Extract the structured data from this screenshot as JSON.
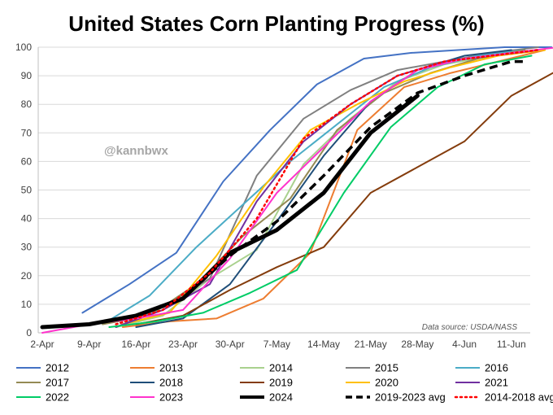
{
  "chart_data": {
    "type": "line",
    "title": "United States Corn Planting Progress (%)",
    "watermark": "@kannbwx",
    "source_note": "Data source: USDA/NASS",
    "ylim": [
      0,
      100
    ],
    "yticks": [
      0,
      10,
      20,
      30,
      40,
      50,
      60,
      70,
      80,
      90,
      100
    ],
    "x_day_range": [
      0,
      71
    ],
    "xticks": [
      {
        "label": "2-Apr",
        "day": 0
      },
      {
        "label": "9-Apr",
        "day": 7
      },
      {
        "label": "16-Apr",
        "day": 14
      },
      {
        "label": "23-Apr",
        "day": 21
      },
      {
        "label": "30-Apr",
        "day": 28
      },
      {
        "label": "7-May",
        "day": 35
      },
      {
        "label": "14-May",
        "day": 42
      },
      {
        "label": "21-May",
        "day": 49
      },
      {
        "label": "28-May",
        "day": 56
      },
      {
        "label": "4-Jun",
        "day": 63
      },
      {
        "label": "11-Jun",
        "day": 70
      }
    ],
    "series": [
      {
        "name": "2012",
        "color": "#4472C4",
        "width": 2,
        "dash": "",
        "x": [
          6,
          13,
          20,
          27,
          34,
          41,
          48,
          55,
          62,
          69,
          76
        ],
        "y": [
          7,
          17,
          28,
          53,
          71,
          87,
          96,
          98,
          99,
          100,
          100
        ]
      },
      {
        "name": "2013",
        "color": "#ED7D31",
        "width": 2,
        "dash": "",
        "x": [
          12,
          19,
          26,
          33,
          40,
          47,
          54,
          61,
          68,
          75
        ],
        "y": [
          2,
          4,
          5,
          12,
          28,
          71,
          86,
          91,
          95,
          99
        ]
      },
      {
        "name": "2014",
        "color": "#A9D18E",
        "width": 2,
        "dash": "",
        "x": [
          11,
          18,
          25,
          32,
          39,
          46,
          53,
          60,
          67,
          74
        ],
        "y": [
          2,
          6,
          19,
          29,
          59,
          75,
          88,
          94,
          97,
          99
        ]
      },
      {
        "name": "2015",
        "color": "#808080",
        "width": 2,
        "dash": "",
        "x": [
          11,
          18,
          25,
          32,
          39,
          46,
          53,
          60,
          67,
          74
        ],
        "y": [
          2,
          9,
          19,
          55,
          75,
          85,
          92,
          95,
          98,
          100
        ]
      },
      {
        "name": "2016",
        "color": "#4BACC6",
        "width": 2,
        "dash": "",
        "x": [
          9,
          16,
          23,
          30,
          37,
          44,
          51,
          58,
          65,
          72
        ],
        "y": [
          3,
          13,
          30,
          45,
          60,
          73,
          86,
          93,
          97,
          99
        ]
      },
      {
        "name": "2017",
        "color": "#948A54",
        "width": 2,
        "dash": "",
        "x": [
          9,
          16,
          23,
          30,
          37,
          44,
          51,
          58,
          65,
          72
        ],
        "y": [
          3,
          6,
          17,
          34,
          47,
          71,
          84,
          91,
          96,
          99
        ]
      },
      {
        "name": "2018",
        "color": "#1F4E79",
        "width": 2,
        "dash": "",
        "x": [
          14,
          21,
          28,
          35,
          42,
          49,
          56,
          63,
          70
        ],
        "y": [
          2,
          5,
          17,
          39,
          62,
          81,
          92,
          97,
          99
        ]
      },
      {
        "name": "2019",
        "color": "#843C0C",
        "width": 2,
        "dash": "",
        "x": [
          14,
          21,
          28,
          35,
          42,
          49,
          56,
          63,
          70,
          77
        ],
        "y": [
          3,
          6,
          15,
          23,
          30,
          49,
          58,
          67,
          83,
          92
        ]
      },
      {
        "name": "2020",
        "color": "#FFC000",
        "width": 2,
        "dash": "",
        "x": [
          12,
          19,
          26,
          33,
          40,
          47,
          54,
          61,
          68,
          75
        ],
        "y": [
          3,
          7,
          27,
          51,
          71,
          80,
          88,
          93,
          97,
          99
        ]
      },
      {
        "name": "2021",
        "color": "#7030A0",
        "width": 2,
        "dash": "",
        "x": [
          11,
          18,
          25,
          32,
          39,
          46,
          53,
          60,
          67,
          74
        ],
        "y": [
          2,
          8,
          17,
          46,
          67,
          80,
          90,
          95,
          97,
          99
        ]
      },
      {
        "name": "2022",
        "color": "#00CC66",
        "width": 2,
        "dash": "",
        "x": [
          10,
          17,
          24,
          31,
          38,
          45,
          52,
          59,
          66,
          73
        ],
        "y": [
          2,
          4,
          7,
          14,
          22,
          49,
          72,
          86,
          94,
          97
        ]
      },
      {
        "name": "2023",
        "color": "#FF33CC",
        "width": 2,
        "dash": "",
        "x": [
          0,
          7,
          14,
          21,
          28,
          35,
          42,
          49,
          56,
          63,
          70,
          77
        ],
        "y": [
          0,
          3,
          5,
          8,
          26,
          49,
          65,
          81,
          92,
          96,
          98,
          100
        ]
      },
      {
        "name": "2024",
        "color": "#000000",
        "width": 5,
        "dash": "",
        "x": [
          0,
          7,
          14,
          21,
          28,
          35,
          42,
          49,
          56
        ],
        "y": [
          2,
          3,
          6,
          12,
          28,
          36,
          49,
          70,
          83
        ]
      },
      {
        "name": "2019-2023 avg",
        "color": "#000000",
        "width": 3.5,
        "dash": "10,6",
        "x": [
          0,
          7,
          14,
          21,
          28,
          35,
          42,
          49,
          56,
          63,
          70,
          72
        ],
        "y": [
          2,
          3,
          6,
          12,
          27,
          39,
          55,
          72,
          84,
          90,
          95,
          95
        ]
      },
      {
        "name": "2014-2018 avg",
        "color": "#FF0000",
        "width": 2.5,
        "dash": "2,4",
        "x": [
          11,
          18,
          25,
          32,
          39,
          46,
          53,
          60,
          67,
          74
        ],
        "y": [
          3,
          8,
          21,
          40,
          68,
          80,
          90,
          95,
          97,
          99
        ]
      }
    ]
  }
}
